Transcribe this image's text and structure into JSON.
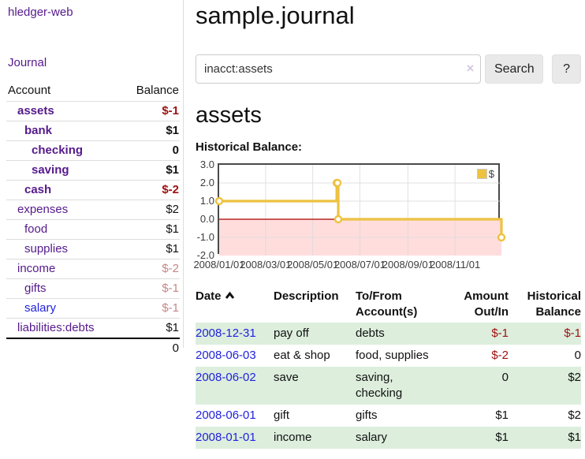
{
  "colors": {
    "link_purple": "#551a8b",
    "link_blue": "#2222dd",
    "negative_strong": "#9e1010",
    "negative_soft": "#c68787",
    "row_stripe_green": "#ddeedd",
    "series_gold": "#edc240",
    "negative_region_pink": "#ffdddd",
    "zero_line_red": "#aa0000"
  },
  "sidebar": {
    "brand": "hledger-web",
    "journal_link": "Journal",
    "accounts_table": {
      "header_account": "Account",
      "header_balance": "Balance",
      "rows": [
        {
          "name": "assets",
          "level": 1,
          "bold": true,
          "blue": false,
          "balance": "$-1",
          "negative": "strong"
        },
        {
          "name": "bank",
          "level": 2,
          "bold": true,
          "blue": false,
          "balance": "$1",
          "negative": null
        },
        {
          "name": "checking",
          "level": 3,
          "bold": true,
          "blue": false,
          "balance": "0",
          "negative": null
        },
        {
          "name": "saving",
          "level": 3,
          "bold": true,
          "blue": false,
          "balance": "$1",
          "negative": null
        },
        {
          "name": "cash",
          "level": 2,
          "bold": true,
          "blue": false,
          "balance": "$-2",
          "negative": "strong"
        },
        {
          "name": "expenses",
          "level": 1,
          "bold": false,
          "blue": false,
          "balance": "$2",
          "negative": null
        },
        {
          "name": "food",
          "level": 2,
          "bold": false,
          "blue": false,
          "balance": "$1",
          "negative": null
        },
        {
          "name": "supplies",
          "level": 2,
          "bold": false,
          "blue": false,
          "balance": "$1",
          "negative": null
        },
        {
          "name": "income",
          "level": 1,
          "bold": false,
          "blue": false,
          "balance": "$-2",
          "negative": "soft"
        },
        {
          "name": "gifts",
          "level": 2,
          "bold": false,
          "blue": false,
          "balance": "$-1",
          "negative": "soft"
        },
        {
          "name": "salary",
          "level": 2,
          "bold": false,
          "blue": true,
          "balance": "$-1",
          "negative": "soft"
        },
        {
          "name": "liabilities:debts",
          "level": 1,
          "bold": false,
          "blue": false,
          "balance": "$1",
          "negative": null
        }
      ],
      "total": "0"
    }
  },
  "main": {
    "title": "sample.journal",
    "search": {
      "value": "inacct:assets",
      "clear_icon": "×",
      "search_button": "Search",
      "help_button": "?"
    },
    "account_heading": "assets",
    "chart_label": "Historical Balance:"
  },
  "register": {
    "h_date": "Date",
    "h_description": "Description",
    "h_accounts": "To/From Account(s)",
    "h_amount": "Amount Out/In",
    "h_balance": "Historical Balance",
    "rows": [
      {
        "date": "2008-12-31",
        "description": "pay off",
        "accounts": [
          "debts"
        ],
        "amount": "$-1",
        "balance": "$-1",
        "amount_negative": true,
        "balance_negative": true,
        "shaded": true
      },
      {
        "date": "2008-06-03",
        "description": "eat & shop",
        "accounts": [
          "food, supplies"
        ],
        "amount": "$-2",
        "balance": "0",
        "amount_negative": true,
        "balance_negative": false,
        "shaded": false
      },
      {
        "date": "2008-06-02",
        "description": "save",
        "accounts": [
          "saving,",
          "checking"
        ],
        "amount": "0",
        "balance": "$2",
        "amount_negative": false,
        "balance_negative": false,
        "shaded": true
      },
      {
        "date": "2008-06-01",
        "description": "gift",
        "accounts": [
          "gifts"
        ],
        "amount": "$1",
        "balance": "$2",
        "amount_negative": false,
        "balance_negative": false,
        "shaded": false
      },
      {
        "date": "2008-01-01",
        "description": "income",
        "accounts": [
          "salary"
        ],
        "amount": "$1",
        "balance": "$1",
        "amount_negative": false,
        "balance_negative": false,
        "shaded": true
      }
    ]
  },
  "chart_data": {
    "type": "line",
    "step": true,
    "title": "Historical Balance",
    "series": [
      {
        "name": "$",
        "color": "#edc240",
        "points": [
          [
            "2008-01-01",
            1
          ],
          [
            "2008-06-01",
            2
          ],
          [
            "2008-06-02",
            2
          ],
          [
            "2008-06-03",
            0
          ],
          [
            "2008-12-31",
            -1
          ]
        ]
      }
    ],
    "xlim": [
      "2008-01-01",
      "2008-12-31"
    ],
    "ylim": [
      -2,
      3
    ],
    "x_ticks": [
      "2008/01/01",
      "2008/03/01",
      "2008/05/01",
      "2008/07/01",
      "2008/09/01",
      "2008/11/01"
    ],
    "y_ticks": [
      "3.0",
      "2.0",
      "1.0",
      "0.0",
      "-1.0",
      "-2.0"
    ],
    "grid": true,
    "legend_position": "top-right",
    "legend": [
      "$"
    ],
    "negative_region_color": "#ffdddd",
    "zero_line_color": "#aa0000"
  }
}
